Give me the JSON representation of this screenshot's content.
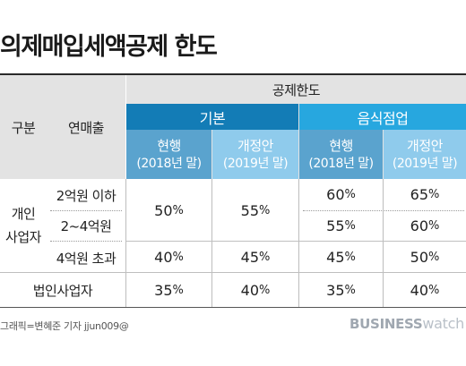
{
  "title": "의제매입세액공제 한도",
  "header": {
    "category": "구분",
    "revenue": "연매출",
    "limit": "공제한도",
    "basic": "기본",
    "food": "음식점업",
    "current": "현행",
    "current_sub": "(2018년 말)",
    "reform": "개정안",
    "reform_sub": "(2019년 말)"
  },
  "groups": {
    "individual": "개인\n사업자",
    "corporate": "법인사업자"
  },
  "rows": [
    {
      "revenue": "2억원 이하",
      "basic_current": "50",
      "basic_reform": "55",
      "food_current": "60",
      "food_reform": "65"
    },
    {
      "revenue": "2~4억원",
      "food_current": "55",
      "food_reform": "60"
    },
    {
      "revenue": "4억원 초과",
      "basic_current": "40",
      "basic_reform": "45",
      "food_current": "45",
      "food_reform": "50"
    },
    {
      "basic_current": "35",
      "basic_reform": "40",
      "food_current": "35",
      "food_reform": "40"
    }
  ],
  "pct": "%",
  "footer": {
    "credit": "그래픽=변혜준 기자 jjun009@",
    "logo_bold": "BUSINESS",
    "logo_light": "watch"
  }
}
